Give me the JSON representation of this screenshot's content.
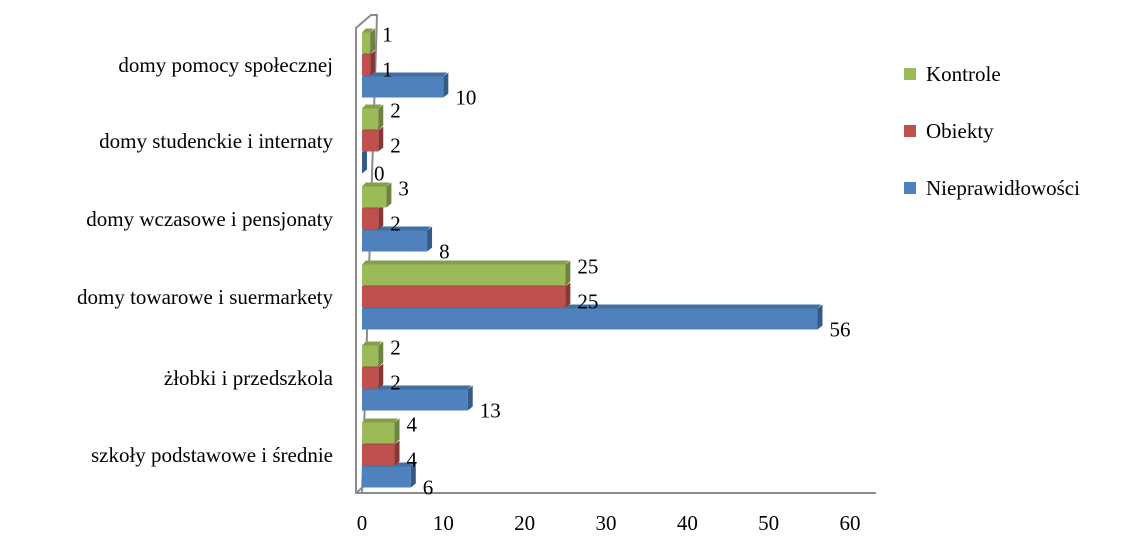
{
  "chart_data": {
    "type": "bar",
    "orientation": "horizontal",
    "style": "3d-clustered",
    "categories": [
      "szkoły podstawowe i średnie",
      "żłobki i przedszkola",
      "domy towarowe i suermarkety",
      "domy wczasowe i pensjonaty",
      "domy studenckie i internaty",
      "domy pomocy społecznej"
    ],
    "series": [
      {
        "name": "Nieprawidłowości",
        "color": "#4f81bd",
        "values": [
          6,
          13,
          56,
          8,
          0,
          10
        ]
      },
      {
        "name": "Obiekty",
        "color": "#c0504d",
        "values": [
          4,
          2,
          25,
          2,
          2,
          1
        ]
      },
      {
        "name": "Kontrole",
        "color": "#9bbb59",
        "values": [
          4,
          2,
          25,
          3,
          2,
          1
        ]
      }
    ],
    "xlim": [
      0,
      60
    ],
    "xticks": [
      0,
      10,
      20,
      30,
      40,
      50,
      60
    ],
    "legend_order": [
      "Kontrole",
      "Obiekty",
      "Nieprawidłowości"
    ],
    "legend_position": "right",
    "grid": false
  }
}
